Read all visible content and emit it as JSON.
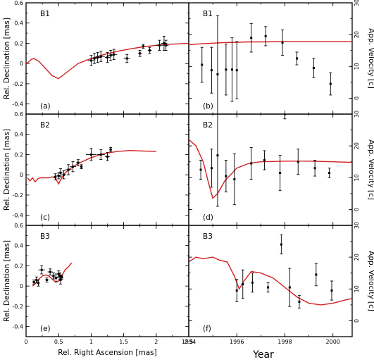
{
  "colors": {
    "model_curve": "#d42020",
    "data_points": "#000000"
  },
  "chart_data": [
    {
      "panel": "(a)",
      "row": "B1",
      "type": "scatter",
      "title": "B1",
      "xlabel": "Rel. Right Ascension [mas]",
      "ylabel": "Rel. Declination [mas]",
      "xlim": [
        0,
        2.5
      ],
      "ylim": [
        -0.5,
        0.6
      ],
      "xticks": [
        0,
        0.5,
        1,
        1.5,
        2,
        2.5
      ],
      "yticks": [
        -0.4,
        -0.2,
        0,
        0.2,
        0.4,
        0.6
      ],
      "series": [
        {
          "role": "data",
          "points": [
            {
              "x": 1.0,
              "y": 0.03,
              "xerr": 0.05,
              "yerr": 0.05
            },
            {
              "x": 1.05,
              "y": 0.05,
              "xerr": 0.05,
              "yerr": 0.05
            },
            {
              "x": 1.1,
              "y": 0.06,
              "xerr": 0.05,
              "yerr": 0.05
            },
            {
              "x": 1.15,
              "y": 0.07,
              "xerr": 0.06,
              "yerr": 0.05
            },
            {
              "x": 1.25,
              "y": 0.06,
              "xerr": 0.04,
              "yerr": 0.05
            },
            {
              "x": 1.3,
              "y": 0.08,
              "xerr": 0.05,
              "yerr": 0.05
            },
            {
              "x": 1.35,
              "y": 0.09,
              "xerr": 0.05,
              "yerr": 0.05
            },
            {
              "x": 1.55,
              "y": 0.05,
              "xerr": 0.05,
              "yerr": 0.04
            },
            {
              "x": 1.75,
              "y": 0.1,
              "xerr": 0.03,
              "yerr": 0.03
            },
            {
              "x": 1.8,
              "y": 0.17,
              "xerr": 0.02,
              "yerr": 0.02
            },
            {
              "x": 1.9,
              "y": 0.13,
              "xerr": 0.03,
              "yerr": 0.03
            },
            {
              "x": 2.05,
              "y": 0.18,
              "xerr": 0.05,
              "yerr": 0.05
            },
            {
              "x": 2.12,
              "y": 0.2,
              "xerr": 0.05,
              "yerr": 0.07
            },
            {
              "x": 2.15,
              "y": 0.18,
              "xerr": 0.04,
              "yerr": 0.05
            }
          ]
        },
        {
          "role": "model",
          "x": [
            0,
            0.03,
            0.08,
            0.12,
            0.2,
            0.3,
            0.4,
            0.5,
            0.6,
            0.8,
            1.0,
            1.2,
            1.4,
            1.6,
            1.8,
            2.0,
            2.2,
            2.5
          ],
          "y": [
            0,
            0.01,
            0.04,
            0.05,
            0.02,
            -0.05,
            -0.12,
            -0.15,
            -0.1,
            0.0,
            0.05,
            0.09,
            0.12,
            0.145,
            0.165,
            0.18,
            0.19,
            0.2
          ]
        }
      ]
    },
    {
      "panel": "(b)",
      "row": "B1",
      "type": "scatter",
      "title": "B1",
      "xlabel": "Year",
      "ylabel": "App. Velocity [c]",
      "xlim": [
        1994,
        2000.8
      ],
      "ylim": [
        -5,
        30
      ],
      "xticks": [
        1994,
        1996,
        1998,
        2000
      ],
      "yticks": [
        0,
        10,
        20,
        30
      ],
      "series": [
        {
          "role": "data",
          "points": [
            {
              "x": 1994.55,
              "y": 10.5,
              "yerr": 5.5
            },
            {
              "x": 1994.95,
              "y": 8.8,
              "yerr": 7.2
            },
            {
              "x": 1995.2,
              "y": 7.5,
              "yerr": 18.5
            },
            {
              "x": 1995.55,
              "y": 9.0,
              "yerr": 8.0
            },
            {
              "x": 1995.8,
              "y": 9.0,
              "yerr": 10.0
            },
            {
              "x": 1996.0,
              "y": 8.8,
              "yerr": 9.0
            },
            {
              "x": 1996.6,
              "y": 19.0,
              "yerr": 4.5
            },
            {
              "x": 1997.2,
              "y": 19.5,
              "yerr": 3.0
            },
            {
              "x": 1997.9,
              "y": 17.5,
              "yerr": 4.0
            },
            {
              "x": 1998.5,
              "y": 12.5,
              "yerr": 2.0
            },
            {
              "x": 1999.2,
              "y": 9.5,
              "yerr": 3.0
            },
            {
              "x": 1999.9,
              "y": 4.5,
              "yerr": 3.5
            }
          ]
        },
        {
          "role": "model",
          "x": [
            1994,
            1994.5,
            1995,
            1995.5,
            1996,
            1996.5,
            1997,
            1998,
            1999,
            2000,
            2000.8
          ],
          "y": [
            16.8,
            17.1,
            17.3,
            17.5,
            17.6,
            17.7,
            17.7,
            17.8,
            17.8,
            17.8,
            17.8
          ]
        }
      ]
    },
    {
      "panel": "(c)",
      "row": "B2",
      "type": "scatter",
      "title": "B2",
      "xlabel": "Rel. Right Ascension [mas]",
      "ylabel": "Rel. Declination [mas]",
      "xlim": [
        0,
        2.5
      ],
      "ylim": [
        -0.5,
        0.6
      ],
      "xticks": [
        0,
        0.5,
        1,
        1.5,
        2,
        2.5
      ],
      "yticks": [
        -0.4,
        -0.2,
        0,
        0.2,
        0.4,
        0.6
      ],
      "series": [
        {
          "role": "data",
          "points": [
            {
              "x": 0.45,
              "y": -0.02,
              "xerr": 0.03,
              "yerr": 0.03
            },
            {
              "x": 0.5,
              "y": -0.01,
              "xerr": 0.03,
              "yerr": 0.03
            },
            {
              "x": 0.53,
              "y": 0.02,
              "xerr": 0.03,
              "yerr": 0.04
            },
            {
              "x": 0.58,
              "y": 0.0,
              "xerr": 0.04,
              "yerr": 0.04
            },
            {
              "x": 0.65,
              "y": 0.05,
              "xerr": 0.05,
              "yerr": 0.05
            },
            {
              "x": 0.72,
              "y": 0.08,
              "xerr": 0.05,
              "yerr": 0.05
            },
            {
              "x": 0.8,
              "y": 0.12,
              "xerr": 0.03,
              "yerr": 0.03
            },
            {
              "x": 0.85,
              "y": 0.08,
              "xerr": 0.02,
              "yerr": 0.02
            },
            {
              "x": 1.0,
              "y": 0.2,
              "xerr": 0.08,
              "yerr": 0.06
            },
            {
              "x": 1.15,
              "y": 0.2,
              "xerr": 0.06,
              "yerr": 0.05
            },
            {
              "x": 1.25,
              "y": 0.18,
              "xerr": 0.04,
              "yerr": 0.04
            },
            {
              "x": 1.3,
              "y": 0.25,
              "xerr": 0.02,
              "yerr": 0.02
            }
          ]
        },
        {
          "role": "model",
          "x": [
            0.02,
            0.06,
            0.1,
            0.14,
            0.18,
            0.22,
            0.26,
            0.3,
            0.35,
            0.4,
            0.45,
            0.5,
            0.53,
            0.6,
            0.7,
            0.8,
            1.0,
            1.2,
            1.4,
            1.6,
            1.8,
            2.0
          ],
          "y": [
            -0.03,
            -0.06,
            -0.03,
            -0.07,
            -0.04,
            -0.03,
            -0.03,
            -0.03,
            -0.03,
            -0.02,
            -0.03,
            -0.09,
            -0.05,
            0.02,
            0.07,
            0.11,
            0.17,
            0.21,
            0.23,
            0.24,
            0.235,
            0.23
          ]
        }
      ]
    },
    {
      "panel": "(d)",
      "row": "B2",
      "type": "scatter",
      "title": "B2",
      "xlabel": "Year",
      "ylabel": "App. Velocity [c]",
      "xlim": [
        1994,
        2000.8
      ],
      "ylim": [
        -5,
        30
      ],
      "xticks": [
        1994,
        1996,
        1998,
        2000
      ],
      "yticks": [
        0,
        10,
        20,
        30
      ],
      "series": [
        {
          "role": "data",
          "points": [
            {
              "x": 1994.5,
              "y": 12.5,
              "yerr": 3.0
            },
            {
              "x": 1994.95,
              "y": 13.0,
              "yerr": 6.0
            },
            {
              "x": 1995.2,
              "y": 17.0,
              "yerr": 16.0
            },
            {
              "x": 1995.55,
              "y": 10.5,
              "yerr": 5.0
            },
            {
              "x": 1995.9,
              "y": 9.5,
              "yerr": 8.0
            },
            {
              "x": 1996.6,
              "y": 14.5,
              "yerr": 5.0
            },
            {
              "x": 1997.15,
              "y": 15.5,
              "yerr": 3.0
            },
            {
              "x": 1997.8,
              "y": 11.5,
              "yerr": 5.5
            },
            {
              "x": 1998.0,
              "y": 30.0,
              "yerr": 1.5
            },
            {
              "x": 1998.55,
              "y": 15.0,
              "yerr": 4.0
            },
            {
              "x": 1999.25,
              "y": 13.0,
              "yerr": 2.5
            },
            {
              "x": 1999.85,
              "y": 11.5,
              "yerr": 1.5
            }
          ]
        },
        {
          "role": "model",
          "x": [
            1994,
            1994.3,
            1994.6,
            1994.8,
            1995,
            1995.2,
            1995.5,
            1996,
            1996.5,
            1997,
            1998,
            1999,
            2000,
            2000.8
          ],
          "y": [
            22.0,
            20.0,
            15.0,
            9.0,
            3.5,
            5.0,
            9.0,
            13.0,
            14.5,
            15.0,
            15.2,
            15.2,
            15.0,
            14.8
          ]
        }
      ]
    },
    {
      "panel": "(e)",
      "row": "B3",
      "type": "scatter",
      "title": "B3",
      "xlabel": "Rel. Right Ascension [mas]",
      "ylabel": "Rel. Declination [mas]",
      "xlim": [
        0,
        2.5
      ],
      "ylim": [
        -0.5,
        0.6
      ],
      "xticks": [
        0,
        0.5,
        1,
        1.5,
        2,
        2.5
      ],
      "yticks": [
        -0.4,
        -0.2,
        0,
        0.2,
        0.4,
        0.6
      ],
      "series": [
        {
          "role": "data",
          "points": [
            {
              "x": 0.12,
              "y": 0.04,
              "xerr": 0.02,
              "yerr": 0.02
            },
            {
              "x": 0.16,
              "y": 0.06,
              "xerr": 0.02,
              "yerr": 0.03
            },
            {
              "x": 0.19,
              "y": 0.03,
              "xerr": 0.02,
              "yerr": 0.03
            },
            {
              "x": 0.24,
              "y": 0.16,
              "xerr": 0.05,
              "yerr": 0.04
            },
            {
              "x": 0.32,
              "y": 0.06,
              "xerr": 0.03,
              "yerr": 0.02
            },
            {
              "x": 0.37,
              "y": 0.14,
              "xerr": 0.04,
              "yerr": 0.03
            },
            {
              "x": 0.42,
              "y": 0.1,
              "xerr": 0.03,
              "yerr": 0.03
            },
            {
              "x": 0.46,
              "y": 0.08,
              "xerr": 0.04,
              "yerr": 0.04
            },
            {
              "x": 0.5,
              "y": 0.12,
              "xerr": 0.03,
              "yerr": 0.03
            },
            {
              "x": 0.52,
              "y": 0.1,
              "xerr": 0.03,
              "yerr": 0.03
            },
            {
              "x": 0.53,
              "y": 0.06,
              "xerr": 0.03,
              "yerr": 0.04
            },
            {
              "x": 0.55,
              "y": 0.09,
              "xerr": 0.02,
              "yerr": 0.02
            }
          ]
        },
        {
          "role": "model",
          "x": [
            0.1,
            0.15,
            0.2,
            0.25,
            0.3,
            0.35,
            0.4,
            0.45,
            0.5,
            0.55,
            0.6,
            0.65,
            0.7
          ],
          "y": [
            0.0,
            0.03,
            0.07,
            0.1,
            0.11,
            0.1,
            0.07,
            0.04,
            0.05,
            0.1,
            0.16,
            0.19,
            0.23
          ]
        }
      ]
    },
    {
      "panel": "(f)",
      "row": "B3",
      "type": "scatter",
      "title": "B3",
      "xlabel": "Year",
      "ylabel": "App. Velocity [c]",
      "xlim": [
        1994,
        2000.8
      ],
      "ylim": [
        -5,
        30
      ],
      "xticks": [
        1994,
        1996,
        1998,
        2000
      ],
      "yticks": [
        0,
        10,
        20,
        30
      ],
      "series": [
        {
          "role": "data",
          "points": [
            {
              "x": 1996.0,
              "y": 9.5,
              "yerr": 3.5
            },
            {
              "x": 1996.25,
              "y": 11.5,
              "yerr": 4.5
            },
            {
              "x": 1996.65,
              "y": 12.0,
              "yerr": 3.0
            },
            {
              "x": 1997.3,
              "y": 10.5,
              "yerr": 1.5
            },
            {
              "x": 1997.85,
              "y": 24.0,
              "yerr": 3.0
            },
            {
              "x": 1998.2,
              "y": 10.5,
              "yerr": 6.0
            },
            {
              "x": 1998.6,
              "y": 6.0,
              "yerr": 2.0
            },
            {
              "x": 1999.3,
              "y": 14.5,
              "yerr": 3.5
            },
            {
              "x": 1999.95,
              "y": 9.5,
              "yerr": 3.0
            }
          ]
        },
        {
          "role": "model",
          "x": [
            1994,
            1994.3,
            1994.6,
            1995,
            1995.3,
            1995.6,
            1995.9,
            1996.1,
            1996.3,
            1996.6,
            1997,
            1997.5,
            1998,
            1998.5,
            1999,
            1999.5,
            2000,
            2000.5,
            2000.8
          ],
          "y": [
            18.5,
            20.0,
            19.5,
            20.0,
            19.0,
            18.5,
            14.0,
            10.0,
            12.5,
            15.5,
            15.0,
            13.5,
            10.5,
            7.5,
            5.5,
            5.0,
            5.5,
            6.5,
            7.0
          ]
        }
      ]
    }
  ]
}
